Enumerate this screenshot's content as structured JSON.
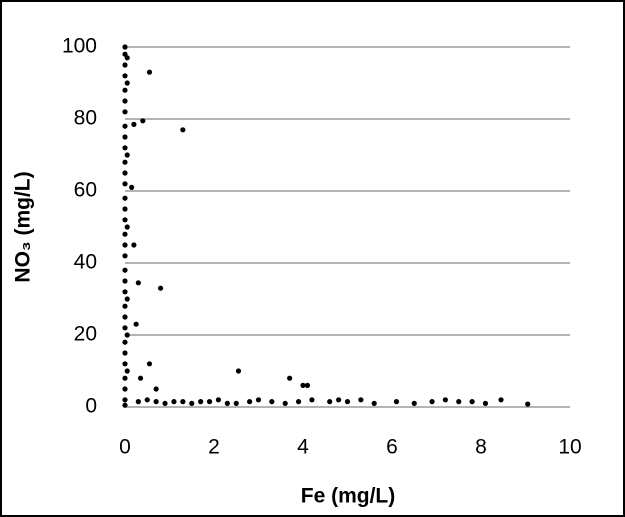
{
  "chart_data": {
    "type": "scatter",
    "x_label": "Fe (mg/L)",
    "y_label": "NO₃ (mg/L)",
    "x": [
      0,
      0,
      0,
      0,
      0,
      0,
      0,
      0,
      0,
      0,
      0,
      0,
      0,
      0,
      0,
      0,
      0,
      0,
      0,
      0,
      0,
      0,
      0,
      0,
      0,
      0,
      0,
      0,
      0,
      0,
      0,
      0,
      0.05,
      0.05,
      0.05,
      0.05,
      0.05,
      0.05,
      0.05,
      0.55,
      0.2,
      0.4,
      1.3,
      0.15,
      0.2,
      0.3,
      0.8,
      0.25,
      0.55,
      0.35,
      2.55,
      3.7,
      4.0,
      4.1,
      0.7,
      0.3,
      0.5,
      0.7,
      0.9,
      1.1,
      1.3,
      1.5,
      1.7,
      1.9,
      2.1,
      2.3,
      2.5,
      2.8,
      3.0,
      3.3,
      3.6,
      3.9,
      4.2,
      4.6,
      4.8,
      5.0,
      5.3,
      5.6,
      6.1,
      6.5,
      6.9,
      7.2,
      7.5,
      7.8,
      8.1,
      8.45,
      9.05
    ],
    "values": [
      100,
      98,
      95,
      92,
      88,
      85,
      82,
      78,
      75,
      72,
      68,
      65,
      62,
      58,
      55,
      52,
      48,
      45,
      42,
      38,
      35,
      32,
      28,
      25,
      22,
      18,
      15,
      12,
      8,
      5,
      2,
      0.5,
      97,
      90,
      70,
      50,
      30,
      20,
      10,
      93,
      78.5,
      79.5,
      77,
      61,
      45,
      34.5,
      33,
      23,
      12,
      8,
      10,
      8,
      6,
      6,
      5,
      1.5,
      2,
      1.5,
      1,
      1.5,
      1.5,
      1,
      1.5,
      1.5,
      2,
      1,
      1,
      1.5,
      2,
      1.5,
      1,
      1.5,
      2,
      1.5,
      2,
      1.5,
      2,
      1,
      1.5,
      1,
      1.5,
      2,
      1.5,
      1.5,
      1,
      2,
      0.8
    ],
    "color": "#000000",
    "xlim": [
      0,
      10
    ],
    "xticks": [
      0,
      2,
      4,
      6,
      8,
      10
    ],
    "ylim": [
      0,
      100
    ],
    "yticks": [
      0,
      20,
      40,
      60,
      80,
      100
    ],
    "grid": true
  }
}
